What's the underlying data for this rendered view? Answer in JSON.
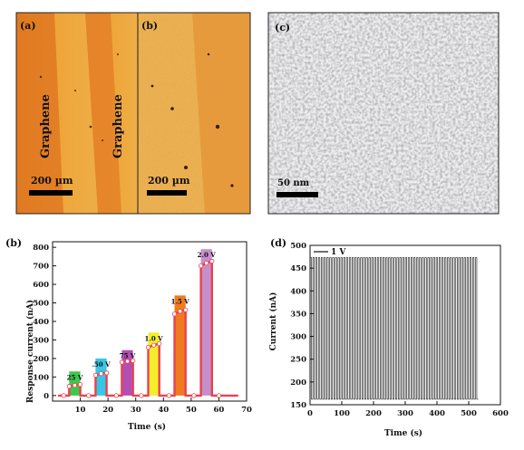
{
  "photos": {
    "a": {
      "label": "(a)",
      "stripe_labels": [
        "Graphene",
        "Graphene"
      ],
      "scale": "200 µm"
    },
    "b": {
      "label": "(b)",
      "scale": "200 µm"
    },
    "c": {
      "label": "(c)",
      "scale": "50 nm"
    }
  },
  "chart_data": [
    {
      "panel": "(b)",
      "type": "bar",
      "xlabel": "Time (s)",
      "ylabel": "Response current (nA)",
      "xlim": [
        0,
        70
      ],
      "ylim": [
        -30,
        830
      ],
      "xticks": [
        10,
        20,
        30,
        40,
        50,
        60,
        70
      ],
      "yticks": [
        0,
        100,
        200,
        300,
        400,
        500,
        600,
        700,
        800
      ],
      "bars": [
        {
          "label": "25 V",
          "x_start": 6,
          "x_end": 10,
          "value": 130,
          "color": "#3cc84a"
        },
        {
          "label": ".50 V",
          "x_start": 15.5,
          "x_end": 19.5,
          "value": 200,
          "color": "#35c7e6"
        },
        {
          "label": "75 V",
          "x_start": 25,
          "x_end": 29,
          "value": 245,
          "color": "#b24fb6"
        },
        {
          "label": "1.0 V",
          "x_start": 34.5,
          "x_end": 38.5,
          "value": 340,
          "color": "#f2ee2a"
        },
        {
          "label": "1.5 V",
          "x_start": 44,
          "x_end": 48,
          "value": 540,
          "color": "#f07a1e"
        },
        {
          "label": "2.0 V",
          "x_start": 53.5,
          "x_end": 57.5,
          "value": 790,
          "color": "#c78fc9"
        }
      ],
      "trace": [
        [
          2,
          0
        ],
        [
          6,
          0
        ],
        [
          6,
          50
        ],
        [
          8,
          55
        ],
        [
          10,
          60
        ],
        [
          10,
          0
        ],
        [
          15.5,
          0
        ],
        [
          15.5,
          110
        ],
        [
          17.5,
          118
        ],
        [
          19.5,
          122
        ],
        [
          19.5,
          0
        ],
        [
          25,
          0
        ],
        [
          25,
          180
        ],
        [
          27,
          185
        ],
        [
          29,
          188
        ],
        [
          29,
          0
        ],
        [
          34.5,
          0
        ],
        [
          34.5,
          260
        ],
        [
          36.5,
          272
        ],
        [
          38.5,
          280
        ],
        [
          38.5,
          0
        ],
        [
          44,
          0
        ],
        [
          44,
          440
        ],
        [
          46,
          455
        ],
        [
          48,
          462
        ],
        [
          48,
          0
        ],
        [
          53.5,
          0
        ],
        [
          53.5,
          700
        ],
        [
          55.5,
          715
        ],
        [
          57.5,
          725
        ],
        [
          57.5,
          0
        ],
        [
          67,
          0
        ]
      ],
      "markers": [
        [
          4,
          0
        ],
        [
          6,
          50
        ],
        [
          8,
          55
        ],
        [
          10,
          60
        ],
        [
          13,
          0
        ],
        [
          15.5,
          110
        ],
        [
          17.5,
          118
        ],
        [
          19.5,
          122
        ],
        [
          23,
          0
        ],
        [
          25,
          180
        ],
        [
          27,
          185
        ],
        [
          29,
          188
        ],
        [
          32,
          0
        ],
        [
          34.5,
          260
        ],
        [
          36.5,
          272
        ],
        [
          38.5,
          280
        ],
        [
          42,
          0
        ],
        [
          44,
          440
        ],
        [
          46,
          455
        ],
        [
          48,
          462
        ],
        [
          51,
          0
        ],
        [
          53.5,
          700
        ],
        [
          55.5,
          715
        ],
        [
          57.5,
          725
        ],
        [
          60,
          0
        ]
      ],
      "line_color": "#e8424f"
    },
    {
      "panel": "(d)",
      "type": "line",
      "xlabel": "Time (s)",
      "ylabel": "Current (nA)",
      "xlim": [
        0,
        600
      ],
      "ylim": [
        150,
        500
      ],
      "xticks": [
        0,
        100,
        200,
        300,
        400,
        500,
        600
      ],
      "yticks": [
        150,
        200,
        250,
        300,
        350,
        400,
        450,
        500
      ],
      "legend": "1 V",
      "cycles": 60,
      "t_start": 0,
      "t_end": 530,
      "low": 162,
      "high": 473
    }
  ]
}
